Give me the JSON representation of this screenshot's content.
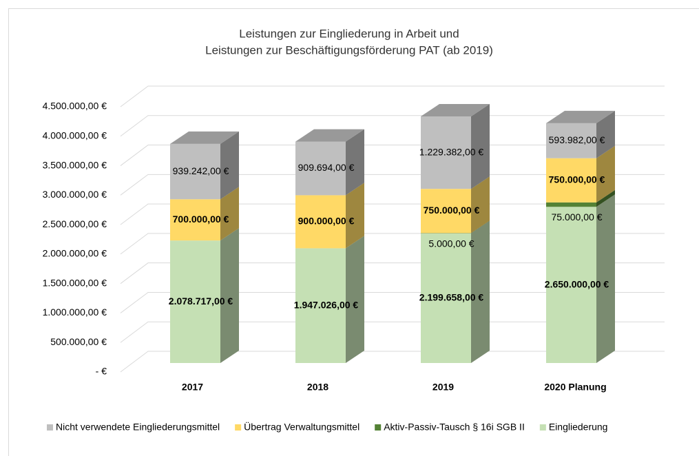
{
  "chart_data": {
    "type": "bar3d_stacked",
    "title": [
      "Leistungen zur Eingliederung in Arbeit und",
      "Leistungen zur Beschäftigungsförderung PAT (ab 2019)"
    ],
    "categories": [
      "2017",
      "2018",
      "2019",
      "2020 Planung"
    ],
    "series": [
      {
        "name": "Eingliederung",
        "color": "#c5e0b4",
        "bold": true,
        "values": [
          2078717,
          1947026,
          2199658,
          2650000
        ],
        "value_labels": [
          "2.078.717,00 €",
          "1.947.026,00 €",
          "2.199.658,00 €",
          "2.650.000,00 €"
        ]
      },
      {
        "name": "Aktiv-Passiv-Tausch § 16i SGB II",
        "color": "#548235",
        "bold": false,
        "values": [
          null,
          null,
          5000,
          75000
        ],
        "value_labels": [
          null,
          null,
          "5.000,00 €",
          "75.000,00 €"
        ]
      },
      {
        "name": "Übertrag Verwaltungsmittel",
        "color": "#ffd966",
        "bold": true,
        "values": [
          700000,
          900000,
          750000,
          750000
        ],
        "value_labels": [
          "700.000,00 €",
          "900.000,00 €",
          "750.000,00 €",
          "750.000,00 €"
        ]
      },
      {
        "name": "Nicht verwendete Eingliederungsmittel",
        "color": "#bfbfbf",
        "bold": false,
        "values": [
          939242,
          909694,
          1229382,
          593982
        ],
        "value_labels": [
          "939.242,00 €",
          "909.694,00 €",
          "1.229.382,00 €",
          "593.982,00 €"
        ]
      }
    ],
    "ylim": [
      0,
      4500000
    ],
    "yticks": [
      {
        "value": 0,
        "label": "-  €"
      },
      {
        "value": 500000,
        "label": "500.000,00 €"
      },
      {
        "value": 1000000,
        "label": "1.000.000,00 €"
      },
      {
        "value": 1500000,
        "label": "1.500.000,00 €"
      },
      {
        "value": 2000000,
        "label": "2.000.000,00 €"
      },
      {
        "value": 2500000,
        "label": "2.500.000,00 €"
      },
      {
        "value": 3000000,
        "label": "3.000.000,00 €"
      },
      {
        "value": 3500000,
        "label": "3.500.000,00 €"
      },
      {
        "value": 4000000,
        "label": "4.000.000,00 €"
      },
      {
        "value": 4500000,
        "label": "4.500.000,00 €"
      }
    ],
    "grid": true,
    "legend": "bottom"
  }
}
